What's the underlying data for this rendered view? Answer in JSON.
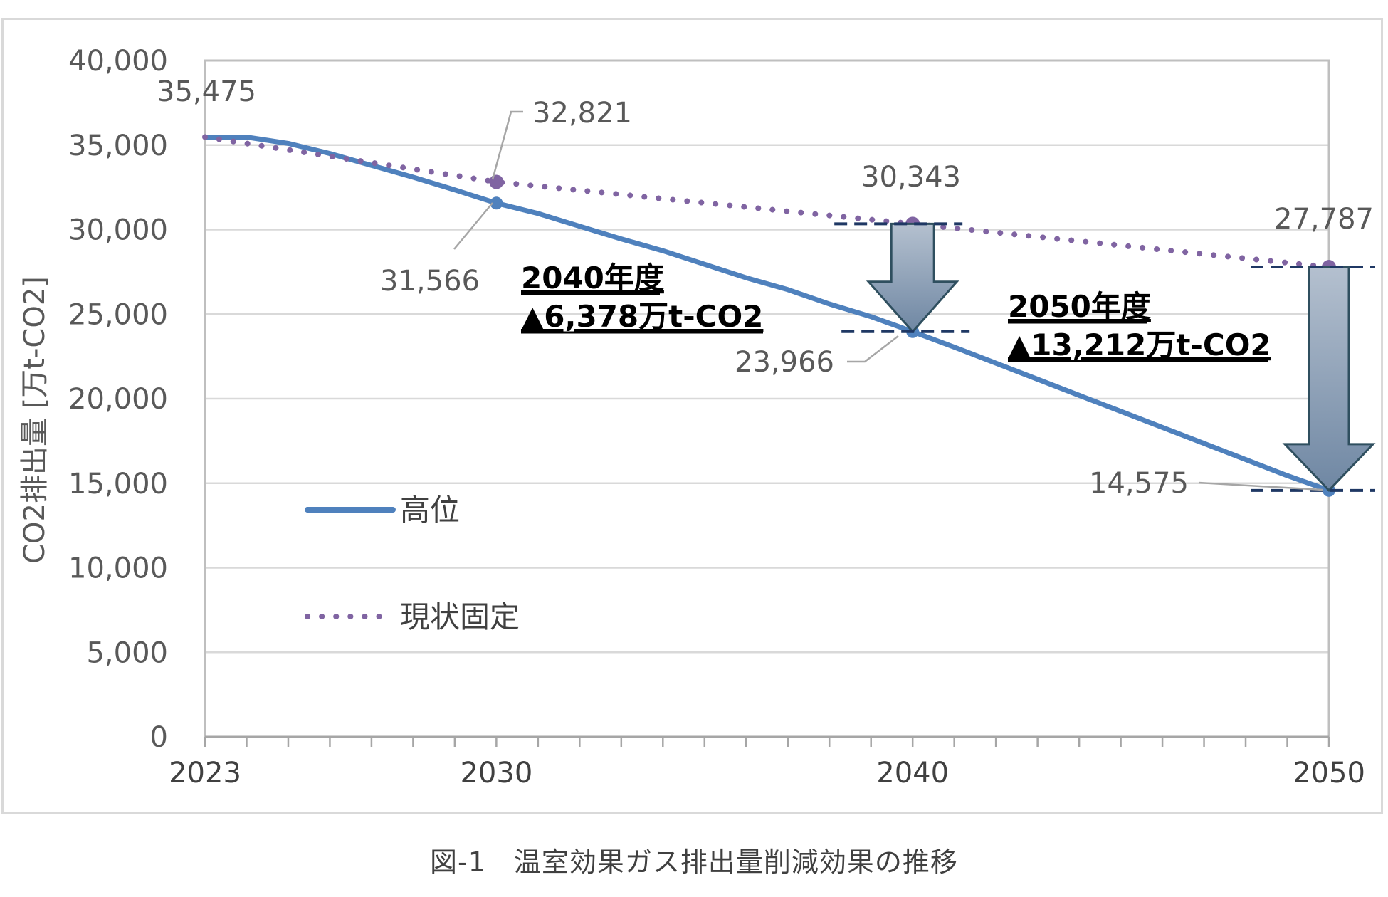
{
  "chart_data": {
    "type": "line",
    "ylabel": "CO2排出量 [万t-CO2]",
    "ylim": [
      0,
      40000
    ],
    "yticks": [
      "0",
      "5,000",
      "10,000",
      "15,000",
      "20,000",
      "25,000",
      "30,000",
      "35,000",
      "40,000"
    ],
    "xlim": [
      2023,
      2050
    ],
    "xticks": [
      "2023",
      "2030",
      "2040",
      "2050"
    ],
    "grid": true,
    "legend_position": "left-middle",
    "series": [
      {
        "name": "高位",
        "style": "solid",
        "color": "#4f81bd",
        "x": [
          2023,
          2024,
          2025,
          2026,
          2027,
          2028,
          2029,
          2030,
          2031,
          2032,
          2033,
          2034,
          2035,
          2036,
          2037,
          2038,
          2039,
          2040,
          2041,
          2042,
          2043,
          2044,
          2045,
          2046,
          2047,
          2048,
          2049,
          2050
        ],
        "y": [
          35475,
          35470,
          35100,
          34500,
          33800,
          33100,
          32350,
          31566,
          30950,
          30200,
          29450,
          28750,
          27950,
          27150,
          26450,
          25600,
          24850,
          23966,
          23050,
          22100,
          21150,
          20200,
          19250,
          18300,
          17350,
          16400,
          15450,
          14575
        ]
      },
      {
        "name": "現状固定",
        "style": "dotted",
        "color": "#8064a2",
        "x": [
          2023,
          2030,
          2040,
          2050
        ],
        "y": [
          35475,
          32821,
          30343,
          27787
        ]
      }
    ],
    "data_labels": [
      {
        "text": "35,475",
        "x": 2023,
        "y": 35475
      },
      {
        "text": "32,821",
        "x": 2030,
        "y": 32821
      },
      {
        "text": "31,566",
        "x": 2030,
        "y": 31566
      },
      {
        "text": "30,343",
        "x": 2040,
        "y": 30343
      },
      {
        "text": "23,966",
        "x": 2040,
        "y": 23966
      },
      {
        "text": "27,787",
        "x": 2050,
        "y": 27787
      },
      {
        "text": "14,575",
        "x": 2050,
        "y": 14575
      }
    ],
    "annotations": [
      {
        "line1": "2040年度",
        "line2": "▲6,378万t-CO2",
        "year": 2040,
        "from": 30343,
        "to": 23966
      },
      {
        "line1": "2050年度",
        "line2": "▲13,212万t-CO2",
        "year": 2050,
        "from": 27787,
        "to": 14575
      }
    ],
    "arrow_color": "#8497b0"
  },
  "caption": "図-1　温室効果ガス排出量削減効果の推移"
}
